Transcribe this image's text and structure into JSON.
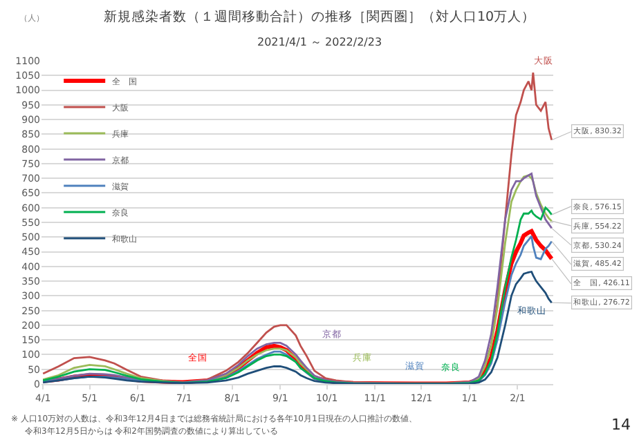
{
  "chart_data": {
    "type": "line",
    "title": "新規感染者数（１週間移動合計）の推移［関西圏］（対人口10万人）",
    "subtitle": "2021/4/1 ～ 2022/2/23",
    "ylabel": "（人）",
    "x": [
      "2021-04-01",
      "2021-04-11",
      "2021-04-21",
      "2021-05-01",
      "2021-05-11",
      "2021-05-17",
      "2021-05-25",
      "2021-06-03",
      "2021-06-17",
      "2021-06-30",
      "2021-07-16",
      "2021-07-28",
      "2021-08-05",
      "2021-08-11",
      "2021-08-17",
      "2021-08-23",
      "2021-08-28",
      "2021-09-01",
      "2021-09-05",
      "2021-09-11",
      "2021-09-14",
      "2021-09-18",
      "2021-09-23",
      "2021-09-30",
      "2021-10-07",
      "2021-10-18",
      "2021-11-07",
      "2021-11-27",
      "2021-12-17",
      "2022-01-01",
      "2022-01-07",
      "2022-01-11",
      "2022-01-15",
      "2022-01-19",
      "2022-01-24",
      "2022-01-28",
      "2022-01-31",
      "2022-02-03",
      "2022-02-05",
      "2022-02-08",
      "2022-02-10",
      "2022-02-11",
      "2022-02-13",
      "2022-02-16",
      "2022-02-19",
      "2022-02-21",
      "2022-02-23"
    ],
    "xlim": [
      "2021-03-31",
      "2022-02-24"
    ],
    "ylim": [
      0,
      1100
    ],
    "yticks": [
      0,
      50,
      100,
      150,
      200,
      250,
      300,
      350,
      400,
      450,
      500,
      550,
      600,
      650,
      700,
      750,
      800,
      850,
      900,
      950,
      1000,
      1050,
      1100
    ],
    "xticks": [
      {
        "value": "2021-04-01",
        "label": "4/1"
      },
      {
        "value": "2021-05-01",
        "label": "5/1"
      },
      {
        "value": "2021-06-01",
        "label": "6/1"
      },
      {
        "value": "2021-07-01",
        "label": "7/1"
      },
      {
        "value": "2021-08-01",
        "label": "8/1"
      },
      {
        "value": "2021-09-01",
        "label": "9/1"
      },
      {
        "value": "2021-10-01",
        "label": "10/1"
      },
      {
        "value": "2021-11-01",
        "label": "11/1"
      },
      {
        "value": "2021-12-01",
        "label": "12/1"
      },
      {
        "value": "2022-01-01",
        "label": "1/1"
      },
      {
        "value": "2022-02-01",
        "label": "2/1"
      }
    ],
    "grid": "y",
    "legend": "top left",
    "series": [
      {
        "name": "全　国",
        "color": "#ff0000",
        "values": [
          10,
          15,
          25,
          30,
          28,
          25,
          18,
          12,
          8,
          6,
          12,
          30,
          55,
          80,
          105,
          125,
          130,
          125,
          115,
          85,
          65,
          45,
          22,
          12,
          6,
          3,
          2,
          1,
          1,
          5,
          15,
          40,
          90,
          180,
          320,
          410,
          450,
          480,
          505,
          515,
          520,
          510,
          490,
          470,
          455,
          440,
          426.11
        ]
      },
      {
        "name": "大阪",
        "color": "#c0504d",
        "values": [
          35,
          60,
          88,
          92,
          80,
          70,
          48,
          25,
          12,
          6,
          15,
          45,
          75,
          105,
          140,
          175,
          195,
          200,
          200,
          165,
          130,
          95,
          45,
          20,
          12,
          6,
          4,
          3,
          3,
          8,
          20,
          60,
          135,
          280,
          560,
          780,
          915,
          960,
          1000,
          1030,
          1000,
          1060,
          950,
          930,
          960,
          870,
          830.32
        ]
      },
      {
        "name": "兵庫",
        "color": "#9bbb59",
        "values": [
          15,
          30,
          55,
          65,
          60,
          50,
          35,
          20,
          10,
          5,
          10,
          30,
          55,
          80,
          100,
          115,
          120,
          120,
          115,
          90,
          70,
          50,
          25,
          12,
          6,
          3,
          2,
          1,
          1,
          5,
          20,
          60,
          130,
          260,
          480,
          620,
          660,
          690,
          705,
          710,
          700,
          690,
          650,
          610,
          580,
          565,
          554.22
        ]
      },
      {
        "name": "京都",
        "color": "#8064a2",
        "values": [
          10,
          18,
          28,
          35,
          33,
          30,
          22,
          14,
          8,
          5,
          12,
          35,
          65,
          95,
          120,
          135,
          140,
          140,
          130,
          100,
          80,
          55,
          28,
          14,
          7,
          3,
          2,
          1,
          1,
          6,
          25,
          80,
          170,
          330,
          560,
          660,
          690,
          690,
          700,
          710,
          716,
          690,
          640,
          600,
          560,
          545,
          530.24
        ]
      },
      {
        "name": "滋賀",
        "color": "#4f81bd",
        "values": [
          8,
          12,
          20,
          25,
          25,
          22,
          16,
          10,
          6,
          4,
          8,
          22,
          45,
          65,
          85,
          100,
          110,
          110,
          100,
          75,
          55,
          38,
          18,
          9,
          4,
          2,
          1,
          1,
          1,
          3,
          10,
          30,
          70,
          150,
          280,
          370,
          410,
          440,
          470,
          490,
          503,
          470,
          430,
          425,
          460,
          470,
          485.42
        ]
      },
      {
        "name": "奈良",
        "color": "#00b050",
        "values": [
          12,
          25,
          42,
          50,
          48,
          40,
          28,
          16,
          8,
          4,
          8,
          20,
          40,
          60,
          80,
          95,
          100,
          100,
          95,
          75,
          55,
          40,
          20,
          10,
          5,
          2,
          1,
          1,
          1,
          3,
          12,
          35,
          80,
          170,
          330,
          430,
          490,
          560,
          580,
          580,
          590,
          580,
          570,
          560,
          600,
          590,
          576.15
        ]
      },
      {
        "name": "和歌山",
        "color": "#1f4e79",
        "values": [
          5,
          12,
          20,
          25,
          22,
          18,
          12,
          8,
          5,
          3,
          5,
          12,
          22,
          35,
          45,
          55,
          60,
          60,
          55,
          42,
          30,
          20,
          10,
          5,
          3,
          1,
          1,
          0,
          0,
          1,
          5,
          15,
          40,
          90,
          200,
          300,
          340,
          360,
          375,
          380,
          382,
          370,
          350,
          330,
          310,
          290,
          276.72
        ]
      }
    ],
    "annotations": [
      "全国",
      "京都",
      "兵庫",
      "滋賀",
      "奈良",
      "和歌山",
      "大阪",
      {
        "text": "大阪, 830.32",
        "x": "2022-02-23",
        "y": 830.32
      },
      {
        "text": "奈良, 576.15",
        "x": "2022-02-23",
        "y": 576.15
      },
      {
        "text": "兵庫, 554.22",
        "x": "2022-02-23",
        "y": 554.22
      },
      {
        "text": "京都, 530.24",
        "x": "2022-02-23",
        "y": 530.24
      },
      {
        "text": "滋賀, 485.42",
        "x": "2022-02-23",
        "y": 485.42
      },
      {
        "text": "全　国, 426.11",
        "x": "2022-02-23",
        "y": 426.11
      },
      {
        "text": "和歌山, 276.72",
        "x": "2022-02-23",
        "y": 276.72
      },
      "※ 人口10万対の人数は、令和3年12月4日までは総務省統計局における各年10月1日現在の人口推計の数値、",
      "令和3年12月5日からは 令和2年国勢調査の数値により算出している",
      "14"
    ]
  }
}
